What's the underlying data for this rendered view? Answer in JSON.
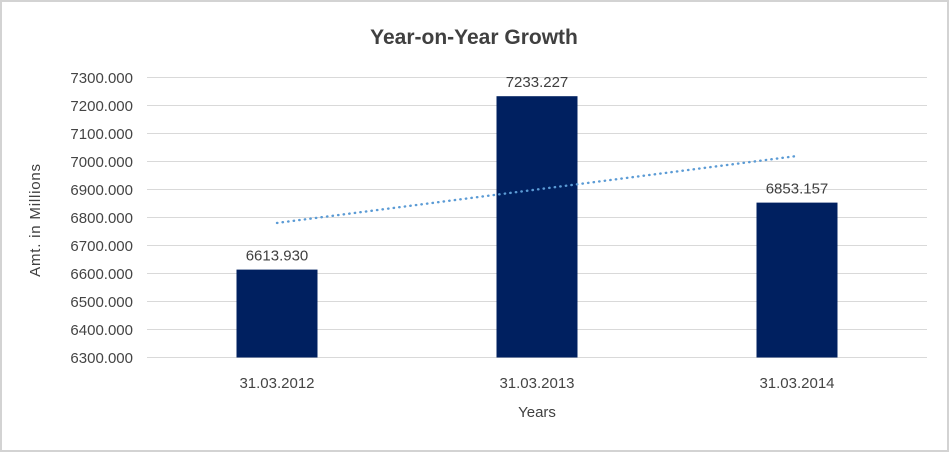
{
  "chart_data": {
    "type": "bar",
    "title": "Year-on-Year Growth",
    "xlabel": "Years",
    "ylabel": "Amt. in Millions",
    "categories": [
      "31.03.2012",
      "31.03.2013",
      "31.03.2014"
    ],
    "values": [
      6613.93,
      7233.227,
      6853.157
    ],
    "value_labels": [
      "6613.930",
      "7233.227",
      "6853.157"
    ],
    "ylim": [
      6300,
      7300
    ],
    "ytick_step": 100,
    "ytick_labels": [
      "7300.000",
      "7200.000",
      "7100.000",
      "7000.000",
      "6900.000",
      "6800.000",
      "6700.000",
      "6600.000",
      "6500.000",
      "6400.000",
      "6300.000"
    ],
    "grid": "horizontal",
    "legend": "none",
    "trendline": {
      "type": "linear",
      "style": "dotted",
      "start_value": 6780.5,
      "end_value": 7019.7
    },
    "colors": {
      "bar": "#002060",
      "trendline": "#5b9bd5",
      "gridline": "#d9d9d9",
      "frame_border": "#d3d3d3",
      "background": "#ffffff",
      "text": "#444444",
      "title_text": "#404040"
    }
  }
}
